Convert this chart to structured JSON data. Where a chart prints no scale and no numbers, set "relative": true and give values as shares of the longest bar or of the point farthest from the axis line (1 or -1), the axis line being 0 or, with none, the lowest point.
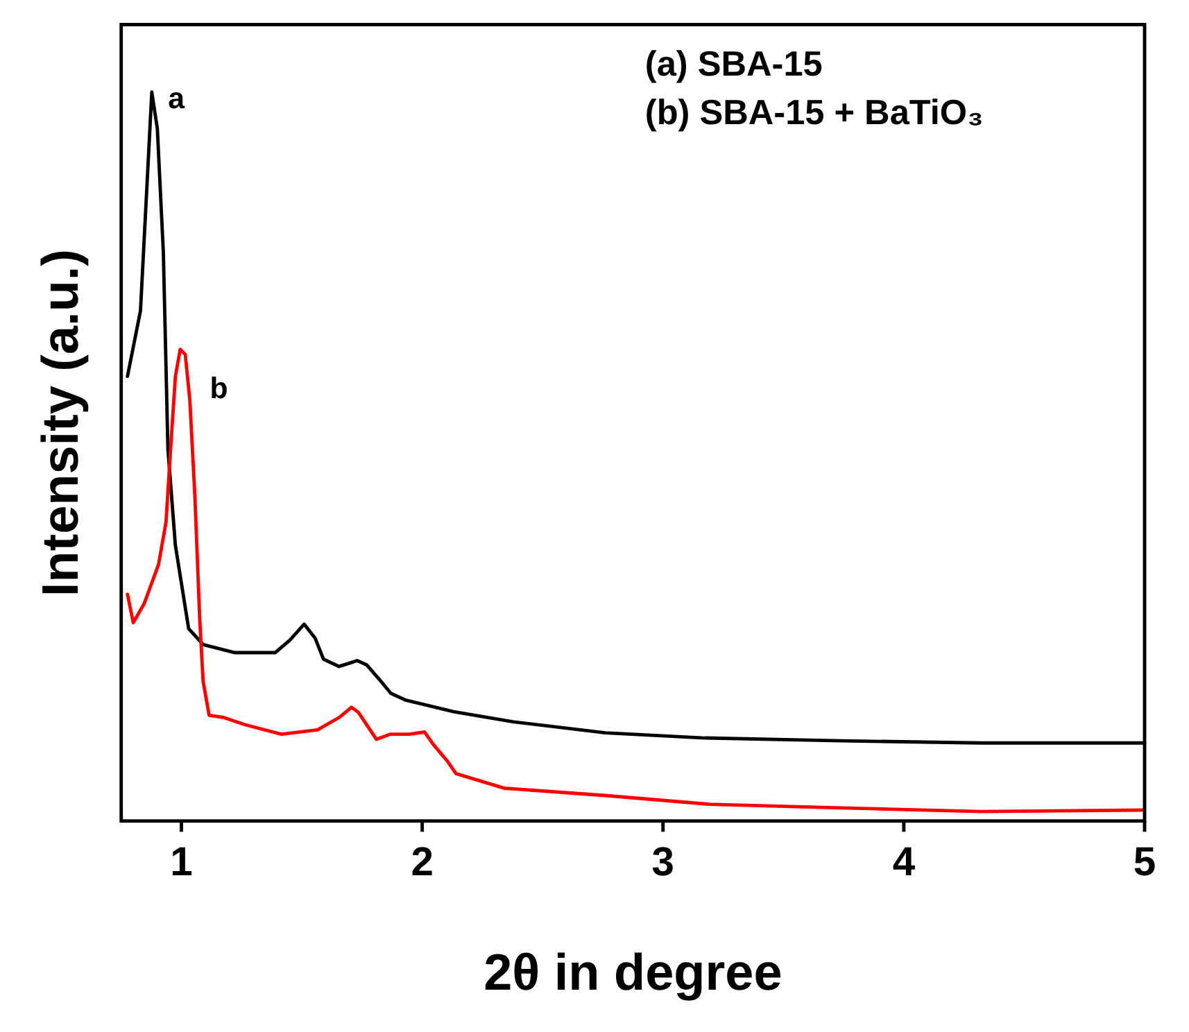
{
  "chart_data": {
    "type": "line",
    "relative": true,
    "xlabel": "2θ in degree",
    "ylabel": "Intensity (a.u.)",
    "xlim": [
      0.75,
      5
    ],
    "xticks": [
      1,
      2,
      3,
      4,
      5
    ],
    "grid": false,
    "marker": "none",
    "line_style": "solid",
    "annotations": [
      "(a) SBA-15",
      "(b) SBA-15 + BaTiO₃"
    ],
    "series": [
      {
        "name": "a",
        "color": "#000000",
        "x": [
          0.776,
          0.83,
          0.877,
          0.9,
          0.925,
          0.944,
          0.975,
          1.03,
          1.09,
          1.22,
          1.39,
          1.45,
          1.51,
          1.555,
          1.59,
          1.655,
          1.73,
          1.77,
          1.82,
          1.87,
          1.93,
          2.13,
          2.38,
          2.76,
          3.16,
          3.74,
          4.32,
          5.0
        ],
        "values": [
          0.61,
          0.7,
          1.0,
          0.95,
          0.78,
          0.51,
          0.378,
          0.264,
          0.242,
          0.231,
          0.231,
          0.248,
          0.27,
          0.251,
          0.222,
          0.212,
          0.22,
          0.214,
          0.195,
          0.175,
          0.166,
          0.15,
          0.136,
          0.121,
          0.114,
          0.11,
          0.107,
          0.107
        ]
      },
      {
        "name": "b",
        "color": "#ff0000",
        "x": [
          0.776,
          0.8,
          0.845,
          0.905,
          0.936,
          0.955,
          0.975,
          0.995,
          1.016,
          1.035,
          1.056,
          1.076,
          1.09,
          1.115,
          1.175,
          1.265,
          1.415,
          1.565,
          1.655,
          1.706,
          1.735,
          1.81,
          1.866,
          1.946,
          2.01,
          2.046,
          2.105,
          2.14,
          2.34,
          2.76,
          3.19,
          3.74,
          4.32,
          5.0
        ],
        "values": [
          0.311,
          0.272,
          0.298,
          0.352,
          0.41,
          0.51,
          0.61,
          0.647,
          0.64,
          0.577,
          0.445,
          0.277,
          0.192,
          0.145,
          0.142,
          0.132,
          0.119,
          0.125,
          0.142,
          0.156,
          0.149,
          0.112,
          0.119,
          0.119,
          0.122,
          0.105,
          0.082,
          0.065,
          0.045,
          0.035,
          0.023,
          0.018,
          0.013,
          0.015
        ]
      }
    ]
  }
}
